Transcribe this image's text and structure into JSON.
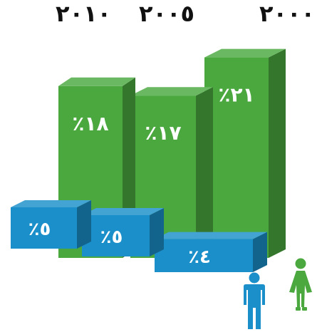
{
  "chart_data": {
    "type": "bar",
    "categories": [
      "٢٠١٠",
      "٢٠٠٥",
      "٢٠٠٠"
    ],
    "series": [
      {
        "values": [
          18,
          17,
          21
        ],
        "labels": [
          "٪١٨",
          "٪١٧",
          "٪٢١"
        ],
        "color": "#4aa83f"
      },
      {
        "values": [
          5,
          5,
          4
        ],
        "labels": [
          "٪٥",
          "٪٥",
          "٪٤"
        ],
        "color": "#1a8fc9"
      }
    ],
    "legend": [
      {
        "icon": "woman-icon",
        "color": "#4aa83f"
      },
      {
        "icon": "man-icon",
        "color": "#1a8fc9"
      }
    ]
  }
}
